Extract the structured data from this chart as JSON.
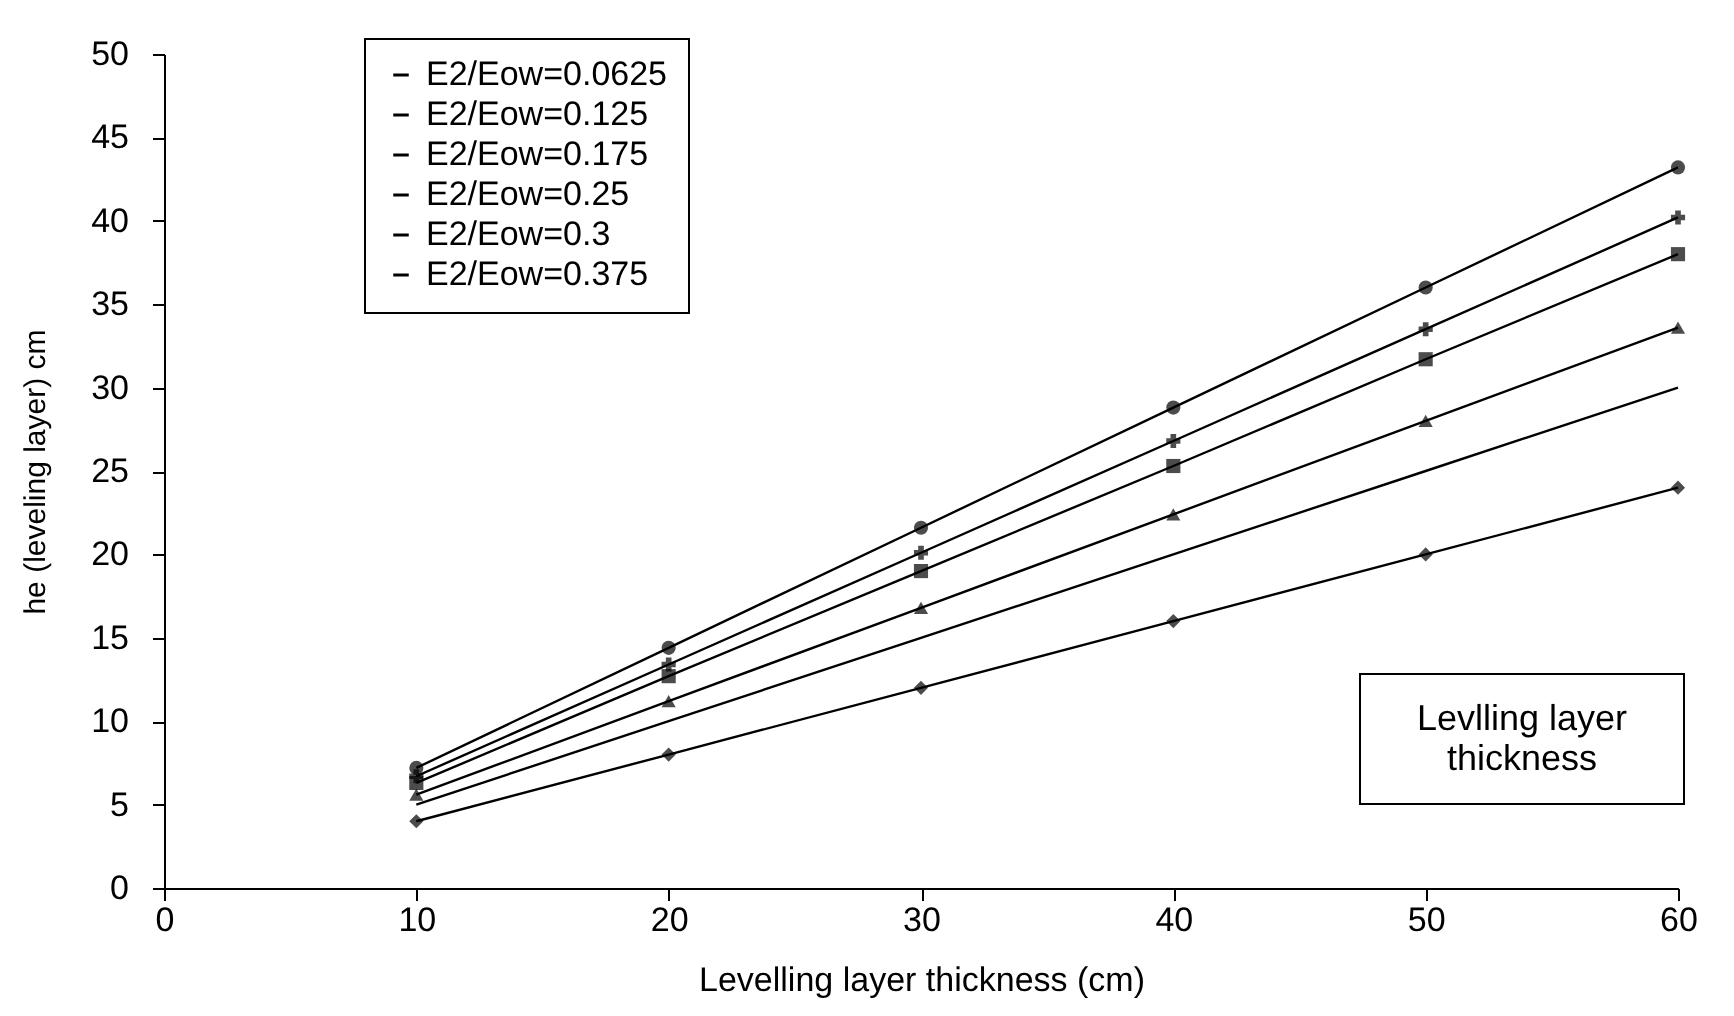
{
  "chart_data": {
    "type": "line",
    "xlabel": "Levelling layer  thickness (cm)",
    "ylabel": "he (leveling layer) cm",
    "x": [
      10,
      20,
      30,
      40,
      50,
      60
    ],
    "series": [
      {
        "name": "E2/Eow=0.0625",
        "color": "#000000",
        "marker": "diamond",
        "values": [
          4,
          8,
          12,
          16,
          20,
          24
        ]
      },
      {
        "name": "E2/Eow=0.125",
        "color": "#000000",
        "marker": "none",
        "values": [
          5,
          10,
          15,
          20,
          25,
          30
        ]
      },
      {
        "name": "E2/Eow=0.175",
        "color": "#000000",
        "marker": "triangle",
        "values": [
          5.6,
          11.2,
          16.8,
          22.4,
          28,
          33.6
        ]
      },
      {
        "name": "E2/Eow=0.25",
        "color": "#000000",
        "marker": "square",
        "values": [
          6.3,
          12.7,
          19,
          25.3,
          31.7,
          38
        ]
      },
      {
        "name": "E2/Eow=0.3",
        "color": "#000000",
        "marker": "cross",
        "values": [
          6.7,
          13.4,
          20.1,
          26.8,
          33.5,
          40.2
        ]
      },
      {
        "name": "E2/Eow=0.375",
        "color": "#000000",
        "marker": "circle",
        "values": [
          7.2,
          14.4,
          21.6,
          28.8,
          36,
          43.2
        ]
      }
    ],
    "annotations": [
      "Levlling layer\nthickness"
    ],
    "xlim": [
      0,
      60
    ],
    "xticks": [
      0,
      10,
      20,
      30,
      40,
      50,
      60
    ],
    "ylim": [
      0,
      50
    ],
    "yticks": [
      0,
      5,
      10,
      15,
      20,
      25,
      30,
      35,
      40,
      45,
      50
    ],
    "grid": false,
    "legend": "top left",
    "line_style": "solid"
  }
}
